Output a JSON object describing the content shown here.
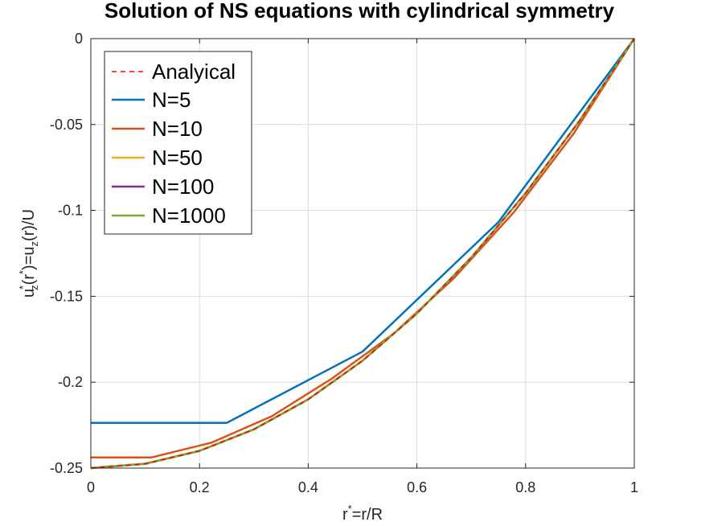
{
  "chart_data": {
    "type": "line",
    "title": "Solution of NS equations with cylindrical symmetry",
    "xlabel": {
      "base": "r",
      "sup": "*",
      "rest": "=r/R"
    },
    "ylabel": {
      "u": "u",
      "sup1": "*",
      "sub1": "z",
      "mid1": "(r",
      "sup2": "*",
      "mid2": ")=u",
      "sub2": "z",
      "end": "(r)/U"
    },
    "xlim": [
      0,
      1
    ],
    "ylim": [
      -0.25,
      0
    ],
    "xticks": [
      0,
      0.2,
      0.4,
      0.6,
      0.8,
      1
    ],
    "xtick_labels": [
      "0",
      "0.2",
      "0.4",
      "0.6",
      "0.8",
      "1"
    ],
    "yticks": [
      0,
      -0.05,
      -0.1,
      -0.15,
      -0.2,
      -0.25
    ],
    "ytick_labels": [
      "0",
      "-0.05",
      "-0.1",
      "-0.15",
      "-0.2",
      "-0.25"
    ],
    "grid": true,
    "legend_position": "top-left",
    "series": [
      {
        "name": "Analyical",
        "color": "#ff0000",
        "dashed": true,
        "x": [
          0,
          0.1,
          0.2,
          0.3,
          0.4,
          0.5,
          0.6,
          0.7,
          0.8,
          0.9,
          1.0
        ],
        "y": [
          -0.25,
          -0.2475,
          -0.24,
          -0.2275,
          -0.21,
          -0.1875,
          -0.16,
          -0.1275,
          -0.09,
          -0.0475,
          0
        ]
      },
      {
        "name": "N=5",
        "color": "#0072bd",
        "dashed": false,
        "x": [
          0,
          0.25,
          0.5,
          0.75,
          1.0
        ],
        "y": [
          -0.2237,
          -0.2237,
          -0.1822,
          -0.1068,
          0
        ]
      },
      {
        "name": "N=10",
        "color": "#d95319",
        "dashed": false,
        "x": [
          0,
          0.111,
          0.222,
          0.333,
          0.444,
          0.556,
          0.667,
          0.778,
          0.889,
          1.0
        ],
        "y": [
          -0.2438,
          -0.2438,
          -0.2352,
          -0.2198,
          -0.1978,
          -0.172,
          -0.1398,
          -0.1012,
          -0.055,
          0
        ]
      },
      {
        "name": "N=50",
        "color": "#edb120",
        "dashed": false,
        "x": [
          0,
          0.1,
          0.2,
          0.3,
          0.4,
          0.5,
          0.6,
          0.7,
          0.8,
          0.9,
          1.0
        ],
        "y": [
          -0.2499,
          -0.2474,
          -0.2399,
          -0.2274,
          -0.2099,
          -0.1874,
          -0.1599,
          -0.1274,
          -0.0899,
          -0.0474,
          0
        ]
      },
      {
        "name": "N=100",
        "color": "#7e2f8e",
        "dashed": false,
        "x": [
          0,
          0.1,
          0.2,
          0.3,
          0.4,
          0.5,
          0.6,
          0.7,
          0.8,
          0.9,
          1.0
        ],
        "y": [
          -0.25,
          -0.2475,
          -0.24,
          -0.2275,
          -0.21,
          -0.1875,
          -0.16,
          -0.1275,
          -0.09,
          -0.0475,
          0
        ]
      },
      {
        "name": "N=1000",
        "color": "#77ac30",
        "dashed": false,
        "x": [
          0,
          0.1,
          0.2,
          0.3,
          0.4,
          0.5,
          0.6,
          0.7,
          0.8,
          0.9,
          1.0
        ],
        "y": [
          -0.25,
          -0.2475,
          -0.24,
          -0.2275,
          -0.21,
          -0.1875,
          -0.16,
          -0.1275,
          -0.09,
          -0.0475,
          0
        ]
      }
    ]
  }
}
